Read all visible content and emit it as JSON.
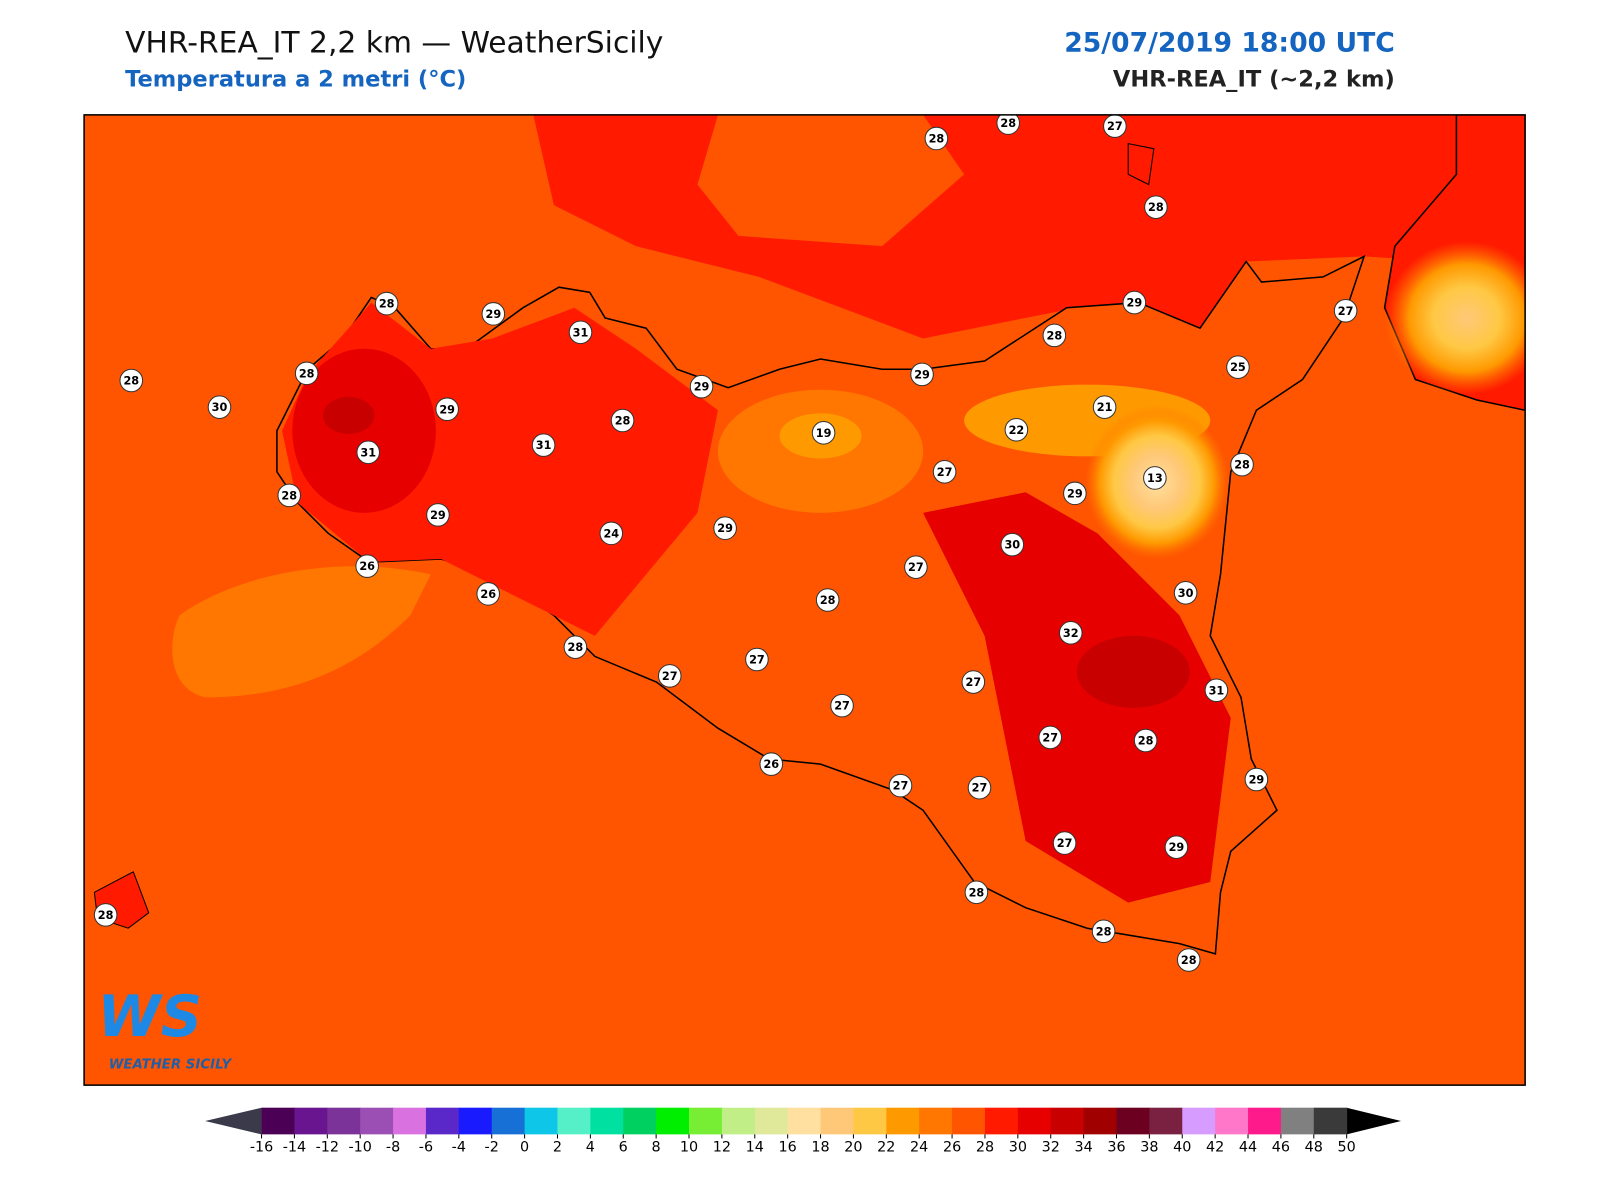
{
  "header": {
    "title": "VHR-REA_IT 2,2 km — WeatherSicily",
    "subtitle": "Temperatura a 2 metri (°C)",
    "datetime": "25/07/2019 18:00 UTC",
    "model": "VHR-REA_IT (~2,2 km)"
  },
  "logo": {
    "mark": "WS",
    "name": "WEATHER SICILY"
  },
  "stations": [
    28,
    30,
    28,
    28,
    29,
    31,
    29,
    31,
    31,
    28,
    29,
    28,
    29,
    26,
    24,
    29,
    19,
    29,
    28,
    28,
    27,
    28,
    29,
    28,
    27,
    25,
    21,
    22,
    27,
    13,
    28,
    29,
    30,
    27,
    26,
    28,
    30,
    32,
    28,
    27,
    27,
    27,
    27,
    31,
    27,
    28,
    26,
    27,
    27,
    29,
    27,
    29,
    28,
    28,
    28,
    28
  ],
  "colorbar": {
    "ticks": [
      -16,
      -14,
      -12,
      -10,
      -8,
      -6,
      -4,
      -2,
      0,
      2,
      4,
      6,
      8,
      10,
      12,
      14,
      16,
      18,
      20,
      22,
      24,
      26,
      28,
      30,
      32,
      34,
      36,
      38,
      40,
      42,
      44,
      46,
      48,
      50
    ],
    "colors": [
      "#4b0055",
      "#6a1590",
      "#7c3399",
      "#9b4fb5",
      "#d972e0",
      "#5a28c8",
      "#1a1aff",
      "#1670d6",
      "#0ec6e8",
      "#55f0c8",
      "#00e0a0",
      "#00d060",
      "#00ee00",
      "#77ee33",
      "#c2ee88",
      "#e0e899",
      "#ffe0a0",
      "#ffc878",
      "#ffc844",
      "#ff9900",
      "#ff7700",
      "#ff5500",
      "#ff1a00",
      "#e60000",
      "#c80000",
      "#a00000",
      "#6b0020",
      "#7a2040",
      "#d69cff",
      "#ff77c8",
      "#ff1a8c",
      "#808080",
      "#3a3a3a"
    ],
    "under": "#3a3a4a",
    "over": "#000000"
  }
}
